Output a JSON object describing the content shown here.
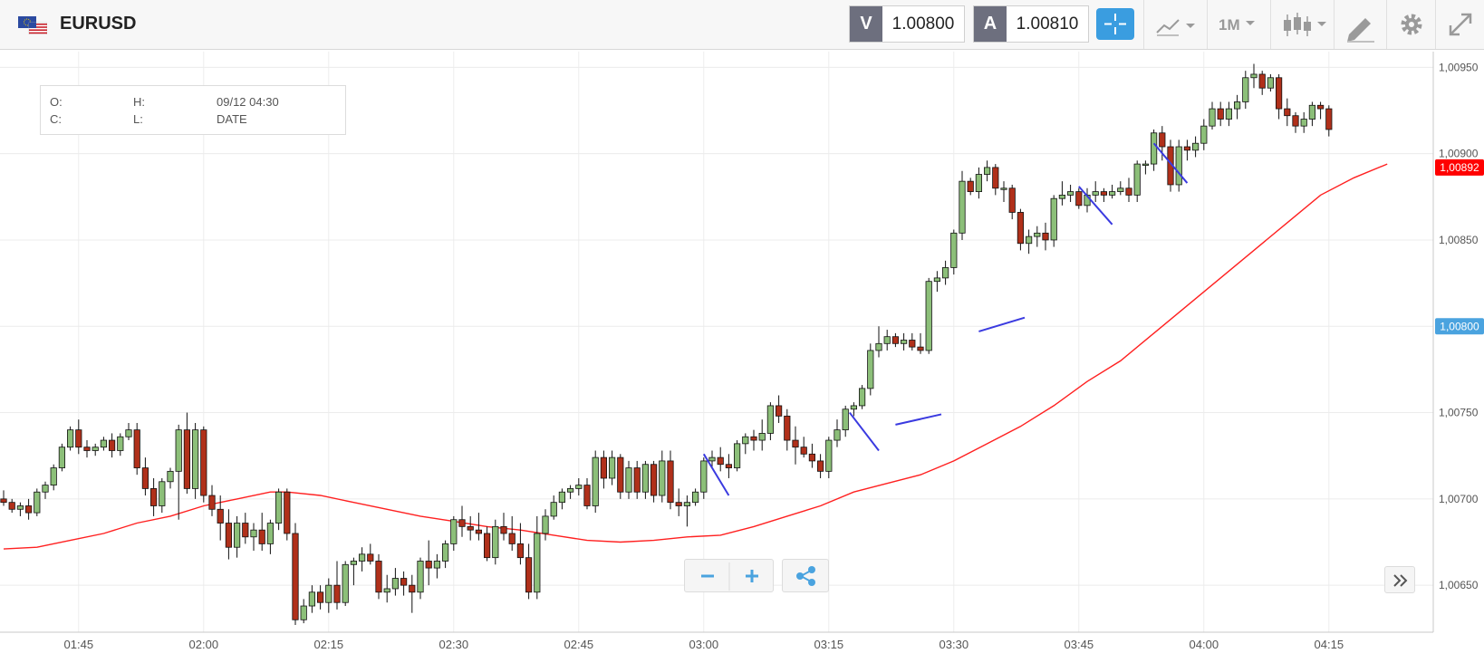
{
  "header": {
    "symbol": "EURUSD",
    "bid_tag": "V",
    "bid_value": "1.00800",
    "ask_tag": "A",
    "ask_value": "1.00810",
    "timeframe": "1M"
  },
  "ohlc_panel": {
    "o_label": "O:",
    "h_label": "H:",
    "c_label": "C:",
    "l_label": "L:",
    "datetime": "09/12 04:30",
    "date_label": "DATE"
  },
  "colors": {
    "bull": "#8cbf79",
    "bear": "#b0301a",
    "ma": "#ff2020",
    "trendline": "#3a3ae0",
    "last_price_tag": "#ff0000",
    "bid_tag": "#4aa3df",
    "grid": "#ececec"
  },
  "chart_data": {
    "type": "candlestick",
    "symbol": "EURUSD",
    "x_ticks": [
      {
        "t": 9,
        "label": "01:45"
      },
      {
        "t": 24,
        "label": "02:00"
      },
      {
        "t": 39,
        "label": "02:15"
      },
      {
        "t": 54,
        "label": "02:30"
      },
      {
        "t": 69,
        "label": "02:45"
      },
      {
        "t": 84,
        "label": "03:00"
      },
      {
        "t": 99,
        "label": "03:15"
      },
      {
        "t": 114,
        "label": "03:30"
      },
      {
        "t": 129,
        "label": "03:45"
      },
      {
        "t": 144,
        "label": "04:00"
      },
      {
        "t": 159,
        "label": "04:15"
      }
    ],
    "y_ticks": [
      "1,00650",
      "1,00700",
      "1,00750",
      "1,00800",
      "1,00850",
      "1,00900",
      "1,00950"
    ],
    "ylim": [
      1.00627,
      1.00957
    ],
    "last_price": {
      "value": 1.00892,
      "label": "1,00892"
    },
    "bid_price": {
      "value": 1.008,
      "label": "1,00800"
    },
    "candles": [
      [
        1.007,
        1.00705,
        1.00696,
        1.00698
      ],
      [
        1.00698,
        1.007,
        1.00692,
        1.00694
      ],
      [
        1.00694,
        1.00698,
        1.0069,
        1.00696
      ],
      [
        1.00696,
        1.007,
        1.00688,
        1.00692
      ],
      [
        1.00692,
        1.00706,
        1.0069,
        1.00704
      ],
      [
        1.00704,
        1.0071,
        1.007,
        1.00708
      ],
      [
        1.00708,
        1.0072,
        1.00705,
        1.00718
      ],
      [
        1.00718,
        1.00732,
        1.00716,
        1.0073
      ],
      [
        1.0073,
        1.00742,
        1.00728,
        1.0074
      ],
      [
        1.0074,
        1.00746,
        1.00726,
        1.0073
      ],
      [
        1.0073,
        1.00734,
        1.00724,
        1.00728
      ],
      [
        1.00728,
        1.00732,
        1.00725,
        1.0073
      ],
      [
        1.0073,
        1.00736,
        1.00728,
        1.00734
      ],
      [
        1.00734,
        1.00738,
        1.00724,
        1.00728
      ],
      [
        1.00728,
        1.00738,
        1.00725,
        1.00736
      ],
      [
        1.00736,
        1.00744,
        1.00734,
        1.0074
      ],
      [
        1.0074,
        1.00744,
        1.00714,
        1.00718
      ],
      [
        1.00718,
        1.00724,
        1.00702,
        1.00706
      ],
      [
        1.00706,
        1.00712,
        1.0069,
        1.00696
      ],
      [
        1.00696,
        1.00712,
        1.00692,
        1.0071
      ],
      [
        1.0071,
        1.00718,
        1.00706,
        1.00716
      ],
      [
        1.00716,
        1.00743,
        1.00688,
        1.0074
      ],
      [
        1.0074,
        1.0075,
        1.00703,
        1.00706
      ],
      [
        1.00706,
        1.00744,
        1.007,
        1.0074
      ],
      [
        1.0074,
        1.00742,
        1.00698,
        1.00702
      ],
      [
        1.00702,
        1.00708,
        1.0069,
        1.00694
      ],
      [
        1.00694,
        1.00702,
        1.00676,
        1.00686
      ],
      [
        1.00686,
        1.00694,
        1.00665,
        1.00672
      ],
      [
        1.00672,
        1.0069,
        1.00666,
        1.00686
      ],
      [
        1.00686,
        1.00692,
        1.00674,
        1.00678
      ],
      [
        1.00678,
        1.00686,
        1.0067,
        1.00682
      ],
      [
        1.00682,
        1.00692,
        1.0067,
        1.00674
      ],
      [
        1.00674,
        1.00688,
        1.00668,
        1.00686
      ],
      [
        1.00686,
        1.00706,
        1.00682,
        1.00704
      ],
      [
        1.00704,
        1.00706,
        1.00676,
        1.0068
      ],
      [
        1.0068,
        1.00686,
        1.00627,
        1.0063
      ],
      [
        1.0063,
        1.00642,
        1.00628,
        1.00638
      ],
      [
        1.00638,
        1.0065,
        1.00634,
        1.00646
      ],
      [
        1.00646,
        1.0065,
        1.00636,
        1.0064
      ],
      [
        1.0064,
        1.00654,
        1.00634,
        1.0065
      ],
      [
        1.0065,
        1.00664,
        1.00636,
        1.0064
      ],
      [
        1.0064,
        1.00664,
        1.00638,
        1.00662
      ],
      [
        1.00662,
        1.00666,
        1.0065,
        1.00664
      ],
      [
        1.00664,
        1.00672,
        1.00658,
        1.00668
      ],
      [
        1.00668,
        1.00674,
        1.00662,
        1.00664
      ],
      [
        1.00664,
        1.00668,
        1.00642,
        1.00646
      ],
      [
        1.00646,
        1.00656,
        1.0064,
        1.00648
      ],
      [
        1.00648,
        1.0066,
        1.00644,
        1.00654
      ],
      [
        1.00654,
        1.00658,
        1.00644,
        1.0065
      ],
      [
        1.0065,
        1.00656,
        1.00634,
        1.00646
      ],
      [
        1.00646,
        1.00666,
        1.00642,
        1.00664
      ],
      [
        1.00664,
        1.00676,
        1.0065,
        1.0066
      ],
      [
        1.0066,
        1.00668,
        1.00654,
        1.00664
      ],
      [
        1.00664,
        1.00676,
        1.0066,
        1.00674
      ],
      [
        1.00674,
        1.0069,
        1.0067,
        1.00688
      ],
      [
        1.00688,
        1.00696,
        1.00678,
        1.00684
      ],
      [
        1.00684,
        1.0069,
        1.00676,
        1.00682
      ],
      [
        1.00682,
        1.00692,
        1.00676,
        1.0068
      ],
      [
        1.0068,
        1.00684,
        1.00664,
        1.00666
      ],
      [
        1.00666,
        1.00688,
        1.00662,
        1.00684
      ],
      [
        1.00684,
        1.00692,
        1.00676,
        1.0068
      ],
      [
        1.0068,
        1.0069,
        1.0067,
        1.00674
      ],
      [
        1.00674,
        1.00686,
        1.00662,
        1.00666
      ],
      [
        1.00666,
        1.00674,
        1.00642,
        1.00646
      ],
      [
        1.00646,
        1.0069,
        1.00642,
        1.0068
      ],
      [
        1.0068,
        1.00694,
        1.00676,
        1.0069
      ],
      [
        1.0069,
        1.00702,
        1.00688,
        1.00698
      ],
      [
        1.00698,
        1.00706,
        1.00694,
        1.00704
      ],
      [
        1.00704,
        1.00708,
        1.007,
        1.00706
      ],
      [
        1.00706,
        1.00712,
        1.00702,
        1.00708
      ],
      [
        1.00708,
        1.00712,
        1.00694,
        1.00696
      ],
      [
        1.00696,
        1.00728,
        1.00692,
        1.00724
      ],
      [
        1.00724,
        1.00728,
        1.00706,
        1.00712
      ],
      [
        1.00712,
        1.00728,
        1.00708,
        1.00724
      ],
      [
        1.00724,
        1.00726,
        1.007,
        1.00704
      ],
      [
        1.00704,
        1.00722,
        1.007,
        1.00718
      ],
      [
        1.00718,
        1.00722,
        1.007,
        1.00704
      ],
      [
        1.00704,
        1.00722,
        1.007,
        1.0072
      ],
      [
        1.0072,
        1.00722,
        1.00698,
        1.00702
      ],
      [
        1.00702,
        1.00728,
        1.00698,
        1.00722
      ],
      [
        1.00722,
        1.00728,
        1.00694,
        1.00698
      ],
      [
        1.00698,
        1.00706,
        1.0069,
        1.00696
      ],
      [
        1.00696,
        1.00702,
        1.00684,
        1.00698
      ],
      [
        1.00698,
        1.00706,
        1.00696,
        1.00704
      ],
      [
        1.00704,
        1.00724,
        1.007,
        1.00722
      ],
      [
        1.00722,
        1.00728,
        1.00718,
        1.00724
      ],
      [
        1.00724,
        1.0073,
        1.00716,
        1.0072
      ],
      [
        1.0072,
        1.00726,
        1.00712,
        1.00718
      ],
      [
        1.00718,
        1.00734,
        1.00716,
        1.00732
      ],
      [
        1.00732,
        1.00738,
        1.00726,
        1.00736
      ],
      [
        1.00736,
        1.0074,
        1.00728,
        1.00734
      ],
      [
        1.00734,
        1.00746,
        1.00728,
        1.00738
      ],
      [
        1.00738,
        1.00756,
        1.00734,
        1.00754
      ],
      [
        1.00754,
        1.0076,
        1.00744,
        1.00748
      ],
      [
        1.00748,
        1.00752,
        1.00728,
        1.00734
      ],
      [
        1.00734,
        1.00742,
        1.0072,
        1.0073
      ],
      [
        1.0073,
        1.00736,
        1.00724,
        1.00726
      ],
      [
        1.00726,
        1.00732,
        1.00718,
        1.00722
      ],
      [
        1.00722,
        1.00726,
        1.00712,
        1.00716
      ],
      [
        1.00716,
        1.00736,
        1.00712,
        1.00734
      ],
      [
        1.00734,
        1.00746,
        1.0073,
        1.0074
      ],
      [
        1.0074,
        1.00754,
        1.00736,
        1.00752
      ],
      [
        1.00752,
        1.00756,
        1.00748,
        1.00754
      ],
      [
        1.00754,
        1.00766,
        1.00752,
        1.00764
      ],
      [
        1.00764,
        1.0079,
        1.0076,
        1.00786
      ],
      [
        1.00786,
        1.008,
        1.00782,
        1.0079
      ],
      [
        1.0079,
        1.00798,
        1.00786,
        1.00794
      ],
      [
        1.00794,
        1.00796,
        1.00788,
        1.0079
      ],
      [
        1.0079,
        1.00796,
        1.00786,
        1.00792
      ],
      [
        1.00792,
        1.00796,
        1.00786,
        1.00788
      ],
      [
        1.00788,
        1.00796,
        1.00784,
        1.00786
      ],
      [
        1.00786,
        1.00828,
        1.00784,
        1.00826
      ],
      [
        1.00826,
        1.00832,
        1.0082,
        1.00828
      ],
      [
        1.00828,
        1.00838,
        1.00824,
        1.00834
      ],
      [
        1.00834,
        1.00856,
        1.0083,
        1.00854
      ],
      [
        1.00854,
        1.0089,
        1.0085,
        1.00884
      ],
      [
        1.00884,
        1.00886,
        1.00876,
        1.00878
      ],
      [
        1.00878,
        1.00892,
        1.00874,
        1.00888
      ],
      [
        1.00888,
        1.00896,
        1.00884,
        1.00892
      ],
      [
        1.00892,
        1.00894,
        1.00876,
        1.0088
      ],
      [
        1.0088,
        1.00884,
        1.00872,
        1.0088
      ],
      [
        1.0088,
        1.00882,
        1.00862,
        1.00866
      ],
      [
        1.00866,
        1.00868,
        1.00844,
        1.00848
      ],
      [
        1.00848,
        1.00856,
        1.00842,
        1.00852
      ],
      [
        1.00852,
        1.00858,
        1.00846,
        1.00854
      ],
      [
        1.00854,
        1.0086,
        1.00844,
        1.0085
      ],
      [
        1.0085,
        1.00876,
        1.00846,
        1.00874
      ],
      [
        1.00874,
        1.00884,
        1.0087,
        1.00876
      ],
      [
        1.00876,
        1.00882,
        1.00872,
        1.00878
      ],
      [
        1.00878,
        1.0088,
        1.00868,
        1.0087
      ],
      [
        1.0087,
        1.0088,
        1.00866,
        1.00876
      ],
      [
        1.00876,
        1.00884,
        1.00872,
        1.00878
      ],
      [
        1.00878,
        1.0088,
        1.00872,
        1.00876
      ],
      [
        1.00876,
        1.00882,
        1.00874,
        1.00878
      ],
      [
        1.00878,
        1.00884,
        1.00876,
        1.0088
      ],
      [
        1.0088,
        1.00886,
        1.00872,
        1.00876
      ],
      [
        1.00876,
        1.00896,
        1.00872,
        1.00894
      ],
      [
        1.00894,
        1.00896,
        1.00888,
        1.00894
      ],
      [
        1.00894,
        1.00914,
        1.0089,
        1.00912
      ],
      [
        1.00912,
        1.00916,
        1.00896,
        1.00904
      ],
      [
        1.00904,
        1.00908,
        1.00878,
        1.00882
      ],
      [
        1.00882,
        1.00908,
        1.00878,
        1.00904
      ],
      [
        1.00904,
        1.00908,
        1.00896,
        1.00902
      ],
      [
        1.00902,
        1.0091,
        1.00898,
        1.00906
      ],
      [
        1.00906,
        1.0092,
        1.00902,
        1.00916
      ],
      [
        1.00916,
        1.0093,
        1.00914,
        1.00926
      ],
      [
        1.00926,
        1.0093,
        1.00916,
        1.0092
      ],
      [
        1.0092,
        1.0093,
        1.00916,
        1.00926
      ],
      [
        1.00926,
        1.00934,
        1.0092,
        1.0093
      ],
      [
        1.0093,
        1.00948,
        1.00926,
        1.00944
      ],
      [
        1.00944,
        1.00952,
        1.00938,
        1.00946
      ],
      [
        1.00946,
        1.00948,
        1.00934,
        1.00938
      ],
      [
        1.00938,
        1.00946,
        1.00936,
        1.00944
      ],
      [
        1.00944,
        1.00946,
        1.0092,
        1.00926
      ],
      [
        1.00926,
        1.00932,
        1.00916,
        1.00922
      ],
      [
        1.00922,
        1.00924,
        1.00912,
        1.00916
      ],
      [
        1.00916,
        1.00924,
        1.00912,
        1.0092
      ],
      [
        1.0092,
        1.0093,
        1.00916,
        1.00928
      ],
      [
        1.00928,
        1.0093,
        1.0092,
        1.00926
      ],
      [
        1.00926,
        1.00928,
        1.0091,
        1.00914
      ]
    ],
    "moving_average": {
      "color": "#ff2020",
      "points": [
        [
          0,
          1.00671
        ],
        [
          4,
          1.00672
        ],
        [
          8,
          1.00676
        ],
        [
          12,
          1.0068
        ],
        [
          16,
          1.00686
        ],
        [
          20,
          1.0069
        ],
        [
          24,
          1.00696
        ],
        [
          28,
          1.007
        ],
        [
          32,
          1.00704
        ],
        [
          34,
          1.00704
        ],
        [
          38,
          1.00702
        ],
        [
          42,
          1.00698
        ],
        [
          46,
          1.00694
        ],
        [
          50,
          1.0069
        ],
        [
          54,
          1.00687
        ],
        [
          58,
          1.00684
        ],
        [
          62,
          1.00682
        ],
        [
          66,
          1.00679
        ],
        [
          70,
          1.00676
        ],
        [
          74,
          1.00675
        ],
        [
          78,
          1.00676
        ],
        [
          82,
          1.00678
        ],
        [
          86,
          1.00679
        ],
        [
          90,
          1.00684
        ],
        [
          94,
          1.0069
        ],
        [
          98,
          1.00696
        ],
        [
          102,
          1.00704
        ],
        [
          106,
          1.00709
        ],
        [
          110,
          1.00714
        ],
        [
          114,
          1.00722
        ],
        [
          118,
          1.00732
        ],
        [
          122,
          1.00742
        ],
        [
          126,
          1.00754
        ],
        [
          130,
          1.00768
        ],
        [
          134,
          1.0078
        ],
        [
          138,
          1.00796
        ],
        [
          142,
          1.00812
        ],
        [
          146,
          1.00828
        ],
        [
          150,
          1.00844
        ],
        [
          154,
          1.0086
        ],
        [
          158,
          1.00876
        ],
        [
          162,
          1.00886
        ],
        [
          166,
          1.00894
        ]
      ]
    },
    "trendlines": [
      [
        [
          84.0,
          1.00726
        ],
        [
          87.0,
          1.00702
        ]
      ],
      [
        [
          101.5,
          1.0075
        ],
        [
          105.0,
          1.00728
        ]
      ],
      [
        [
          107.0,
          1.00743
        ],
        [
          112.5,
          1.00749
        ]
      ],
      [
        [
          117.0,
          1.00797
        ],
        [
          122.5,
          1.00805
        ]
      ],
      [
        [
          129.0,
          1.00881
        ],
        [
          133.0,
          1.00859
        ]
      ],
      [
        [
          138.0,
          1.00906
        ],
        [
          142.0,
          1.00883
        ]
      ]
    ]
  }
}
